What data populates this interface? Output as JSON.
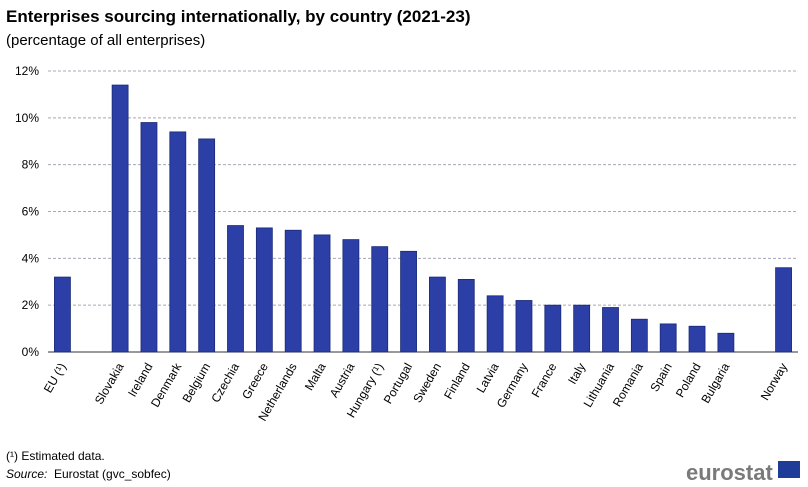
{
  "chart_data": {
    "type": "bar",
    "title": "Enterprises sourcing internationally, by country (2021-23)",
    "subtitle": "(percentage of all enterprises)",
    "categories": [
      "EU (¹)",
      null,
      "Slovakia",
      "Ireland",
      "Denmark",
      "Belgium",
      "Czechia",
      "Greece",
      "Netherlands",
      "Malta",
      "Austria",
      "Hungary (¹)",
      "Portugal",
      "Sweden",
      "Finland",
      "Latvia",
      "Germany",
      "France",
      "Italy",
      "Lithuania",
      "Romania",
      "Spain",
      "Poland",
      "Bulgaria",
      null,
      "Norway"
    ],
    "values": [
      3.2,
      null,
      11.4,
      9.8,
      9.4,
      9.1,
      5.4,
      5.3,
      5.2,
      5.0,
      4.8,
      4.5,
      4.3,
      3.2,
      3.1,
      2.4,
      2.2,
      2.0,
      2.0,
      1.9,
      1.4,
      1.2,
      1.1,
      0.8,
      null,
      3.6
    ],
    "color": "#2b3fa6",
    "ylim": [
      0,
      12
    ],
    "yticks": [
      {
        "value": 0,
        "label": "0%"
      },
      {
        "value": 2,
        "label": "2%"
      },
      {
        "value": 4,
        "label": "4%"
      },
      {
        "value": 6,
        "label": "6%"
      },
      {
        "value": 8,
        "label": "8%"
      },
      {
        "value": 10,
        "label": "10%"
      },
      {
        "value": 12,
        "label": "12%"
      }
    ],
    "grid": true,
    "footnote": "(¹) Estimated data.",
    "source_label": "Source:",
    "source": "Eurostat (gvc_sobfec)",
    "logo": "eurostat"
  }
}
